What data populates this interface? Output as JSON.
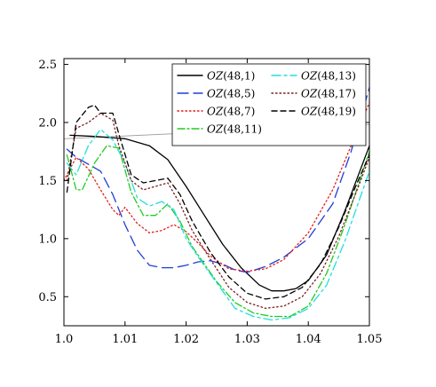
{
  "chart_data": {
    "type": "line",
    "title": "",
    "xlabel": "",
    "ylabel": "",
    "xlim": [
      1.0,
      1.05
    ],
    "ylim": [
      0.25,
      2.55
    ],
    "x_ticks": [
      1.0,
      1.01,
      1.02,
      1.03,
      1.04,
      1.05
    ],
    "x_tick_labels": [
      "1.0",
      "1.01",
      "1.02",
      "1.03",
      "1.04",
      "1.05"
    ],
    "y_ticks": [
      0.5,
      1.0,
      1.5,
      2.0,
      2.5
    ],
    "y_tick_labels": [
      "0.5",
      "1.0",
      "1.5",
      "2.0",
      "2.5"
    ],
    "grid": false,
    "legend_position": "top-right",
    "reference_line": {
      "color": "#999999",
      "x": [
        1.0,
        1.05
      ],
      "y": [
        1.86,
        1.98
      ]
    },
    "series": [
      {
        "name_prefix": "OZ",
        "name_args": "(48,1)",
        "color": "#000000",
        "dash": "solid",
        "x": [
          1.001,
          1.005,
          1.01,
          1.014,
          1.017,
          1.02,
          1.023,
          1.026,
          1.029,
          1.032,
          1.034,
          1.036,
          1.038,
          1.04,
          1.043,
          1.046,
          1.05
        ],
        "y": [
          1.89,
          1.88,
          1.86,
          1.8,
          1.68,
          1.45,
          1.2,
          0.95,
          0.75,
          0.6,
          0.55,
          0.55,
          0.57,
          0.64,
          0.86,
          1.24,
          1.8
        ]
      },
      {
        "name_prefix": "OZ",
        "name_args": "(48,5)",
        "color": "#1f3fd6",
        "dash": "long-dash",
        "x": [
          1.0005,
          1.002,
          1.004,
          1.006,
          1.008,
          1.01,
          1.012,
          1.014,
          1.016,
          1.018,
          1.02,
          1.022,
          1.024,
          1.026,
          1.028,
          1.03,
          1.033,
          1.036,
          1.04,
          1.044,
          1.047,
          1.05
        ],
        "y": [
          1.77,
          1.7,
          1.64,
          1.58,
          1.38,
          1.12,
          0.9,
          0.77,
          0.75,
          0.75,
          0.77,
          0.8,
          0.81,
          0.78,
          0.73,
          0.71,
          0.76,
          0.84,
          1.0,
          1.3,
          1.75,
          2.3
        ]
      },
      {
        "name_prefix": "OZ",
        "name_args": "(48,7)",
        "color": "#e41a1c",
        "dash": "dot",
        "x": [
          1.0,
          1.002,
          1.004,
          1.006,
          1.008,
          1.009,
          1.01,
          1.012,
          1.014,
          1.016,
          1.018,
          1.02,
          1.022,
          1.024,
          1.027,
          1.03,
          1.033,
          1.036,
          1.04,
          1.044,
          1.047,
          1.05
        ],
        "y": [
          1.5,
          1.7,
          1.6,
          1.42,
          1.25,
          1.2,
          1.27,
          1.13,
          1.05,
          1.07,
          1.12,
          1.06,
          0.96,
          0.85,
          0.74,
          0.72,
          0.74,
          0.82,
          1.05,
          1.42,
          1.8,
          2.17
        ]
      },
      {
        "name_prefix": "OZ",
        "name_args": "(48,11)",
        "color": "#22cc22",
        "dash": "dash-dot",
        "x": [
          1.0005,
          1.002,
          1.003,
          1.005,
          1.007,
          1.009,
          1.011,
          1.013,
          1.015,
          1.017,
          1.019,
          1.021,
          1.023,
          1.025,
          1.028,
          1.031,
          1.034,
          1.037,
          1.04,
          1.043,
          1.046,
          1.05
        ],
        "y": [
          1.72,
          1.42,
          1.42,
          1.65,
          1.8,
          1.78,
          1.4,
          1.2,
          1.2,
          1.3,
          1.15,
          0.93,
          0.78,
          0.63,
          0.45,
          0.36,
          0.33,
          0.33,
          0.42,
          0.7,
          1.12,
          1.75
        ]
      },
      {
        "name_prefix": "OZ",
        "name_args": "(48,13)",
        "color": "#22dddd",
        "dash": "long-dash-dot",
        "x": [
          1.0005,
          1.002,
          1.004,
          1.006,
          1.008,
          1.01,
          1.012,
          1.014,
          1.016,
          1.018,
          1.02,
          1.022,
          1.025,
          1.028,
          1.031,
          1.034,
          1.037,
          1.04,
          1.043,
          1.046,
          1.05
        ],
        "y": [
          1.65,
          1.55,
          1.8,
          1.94,
          1.85,
          1.65,
          1.35,
          1.28,
          1.32,
          1.25,
          1.0,
          0.84,
          0.62,
          0.4,
          0.33,
          0.3,
          0.32,
          0.4,
          0.6,
          0.98,
          1.58
        ]
      },
      {
        "name_prefix": "OZ",
        "name_args": "(48,17)",
        "color": "#7a1f1f",
        "dash": "dot",
        "x": [
          1.0005,
          1.002,
          1.004,
          1.006,
          1.008,
          1.009,
          1.011,
          1.013,
          1.015,
          1.017,
          1.019,
          1.021,
          1.024,
          1.027,
          1.03,
          1.033,
          1.036,
          1.039,
          1.042,
          1.045,
          1.048,
          1.05
        ],
        "y": [
          1.5,
          1.95,
          2.0,
          2.08,
          2.02,
          1.8,
          1.5,
          1.42,
          1.45,
          1.48,
          1.3,
          1.07,
          0.82,
          0.58,
          0.45,
          0.4,
          0.42,
          0.5,
          0.7,
          1.02,
          1.42,
          1.7
        ]
      },
      {
        "name_prefix": "OZ",
        "name_args": "(48,19)",
        "color": "#000000",
        "dash": "dash",
        "x": [
          1.0005,
          1.002,
          1.004,
          1.005,
          1.006,
          1.008,
          1.009,
          1.011,
          1.013,
          1.015,
          1.017,
          1.019,
          1.021,
          1.024,
          1.027,
          1.03,
          1.033,
          1.036,
          1.039,
          1.042,
          1.045,
          1.048,
          1.05
        ],
        "y": [
          1.4,
          2.0,
          2.13,
          2.15,
          2.08,
          2.08,
          1.9,
          1.55,
          1.48,
          1.5,
          1.52,
          1.38,
          1.15,
          0.88,
          0.67,
          0.53,
          0.48,
          0.5,
          0.58,
          0.78,
          1.1,
          1.48,
          1.72
        ]
      }
    ]
  }
}
